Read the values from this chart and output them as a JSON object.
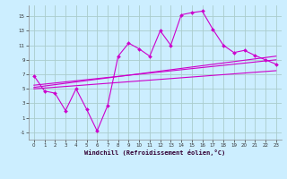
{
  "xlabel": "Windchill (Refroidissement éolien,°C)",
  "background_color": "#cceeff",
  "grid_color": "#aacccc",
  "line_color": "#cc00cc",
  "xlim": [
    -0.5,
    23.5
  ],
  "ylim": [
    -2,
    16.5
  ],
  "xticks": [
    0,
    1,
    2,
    3,
    4,
    5,
    6,
    7,
    8,
    9,
    10,
    11,
    12,
    13,
    14,
    15,
    16,
    17,
    18,
    19,
    20,
    21,
    22,
    23
  ],
  "yticks": [
    -1,
    1,
    3,
    5,
    7,
    9,
    11,
    13,
    15
  ],
  "line1_x": [
    0,
    1,
    2,
    3,
    4,
    5,
    6,
    7,
    8,
    9,
    10,
    11,
    12,
    13,
    14,
    15,
    16,
    17,
    18,
    19,
    20,
    21,
    22,
    23
  ],
  "line1_y": [
    6.8,
    4.7,
    4.4,
    2.0,
    5.0,
    2.2,
    -0.8,
    2.7,
    9.5,
    11.3,
    10.5,
    9.5,
    13.0,
    11.0,
    15.2,
    15.5,
    15.7,
    13.2,
    11.0,
    10.0,
    10.3,
    9.6,
    9.0,
    8.4
  ],
  "line2_x": [
    0,
    23
  ],
  "line2_y": [
    5.2,
    9.5
  ],
  "line3_x": [
    0,
    23
  ],
  "line3_y": [
    5.0,
    7.5
  ],
  "line4_x": [
    0,
    23
  ],
  "line4_y": [
    5.5,
    9.0
  ]
}
